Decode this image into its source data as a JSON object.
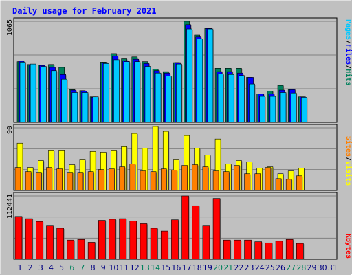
{
  "colors": {
    "background": "#c0c0c0",
    "plot": "#c0c0c0",
    "title": "#0000ff",
    "hits": "#00805c",
    "files": "#0000ff",
    "pages": "#00c8ff",
    "visits": "#ffff00",
    "sites": "#ff8000",
    "kbytes": "#ff0000",
    "weekend_label": "#00805c",
    "weekday_label": "#000080"
  },
  "chart_data": {
    "type": "bar",
    "title": "Daily usage for February 2021",
    "categories": [
      "1",
      "2",
      "3",
      "4",
      "5",
      "6",
      "7",
      "8",
      "9",
      "10",
      "11",
      "12",
      "13",
      "14",
      "15",
      "16",
      "17",
      "18",
      "19",
      "20",
      "21",
      "22",
      "23",
      "24",
      "25",
      "26",
      "27",
      "28",
      "29",
      "30",
      "31"
    ],
    "weekend_days": [
      "6",
      "7",
      "13",
      "14",
      "20",
      "21",
      "27",
      "28"
    ],
    "panels": [
      {
        "id": "hits-files-pages",
        "y_max_label": "1065",
        "ylim": [
          0,
          1065
        ],
        "axis_label_parts": [
          "Pages",
          "/",
          "Files",
          "/",
          "Hits"
        ],
        "series": [
          {
            "name": "Hits",
            "values": [
              640,
              610,
              605,
              610,
              580,
              345,
              335,
              270,
              635,
              725,
              670,
              690,
              640,
              560,
              535,
              630,
              1065,
              920,
              990,
              570,
              570,
              570,
              475,
              300,
              330,
              390,
              350,
              270,
              0,
              0,
              0
            ]
          },
          {
            "name": "Files",
            "values": [
              645,
              610,
              600,
              580,
              505,
              340,
              330,
              265,
              630,
              700,
              650,
              665,
              620,
              545,
              520,
              630,
              1030,
              900,
              990,
              535,
              535,
              520,
              475,
              300,
              300,
              340,
              345,
              270,
              0,
              0,
              0
            ]
          },
          {
            "name": "Pages",
            "values": [
              635,
              615,
              590,
              545,
              455,
              315,
              315,
              270,
              620,
              660,
              640,
              640,
              590,
              520,
              490,
              615,
              985,
              880,
              985,
              510,
              505,
              495,
              405,
              275,
              275,
              315,
              310,
              265,
              0,
              0,
              0
            ]
          }
        ]
      },
      {
        "id": "visits-sites",
        "y_max_label": "90",
        "ylim": [
          0,
          90
        ],
        "axis_label_parts": [
          "Sites",
          "/",
          "Visits"
        ],
        "series": [
          {
            "name": "Visits",
            "values": [
              68,
              33,
              43,
              58,
              58,
              37,
              44,
              56,
              55,
              58,
              63,
              82,
              61,
              92,
              85,
              44,
              79,
              61,
              51,
              74,
              38,
              43,
              41,
              32,
              34,
              24,
              28,
              32,
              0,
              0,
              0
            ]
          },
          {
            "name": "Sites",
            "values": [
              33,
              27,
              26,
              33,
              31,
              26,
              26,
              27,
              30,
              31,
              34,
              38,
              28,
              27,
              31,
              29,
              36,
              37,
              34,
              28,
              27,
              36,
              24,
              24,
              33,
              17,
              16,
              21,
              0,
              0,
              0
            ]
          }
        ]
      },
      {
        "id": "kbytes",
        "y_max_label": "112441",
        "ylim": [
          0,
          112441
        ],
        "axis_label_parts": [
          "KBytes"
        ],
        "series": [
          {
            "name": "KBytes",
            "values": [
              76000,
              72000,
              67000,
              59000,
              55000,
              34000,
              35000,
              30000,
              69000,
              71000,
              72000,
              68000,
              63000,
              55000,
              50000,
              70000,
              112441,
              95000,
              59000,
              108000,
              34000,
              34000,
              34000,
              31000,
              29000,
              32000,
              35000,
              28000,
              0,
              0,
              0
            ]
          }
        ]
      }
    ]
  }
}
